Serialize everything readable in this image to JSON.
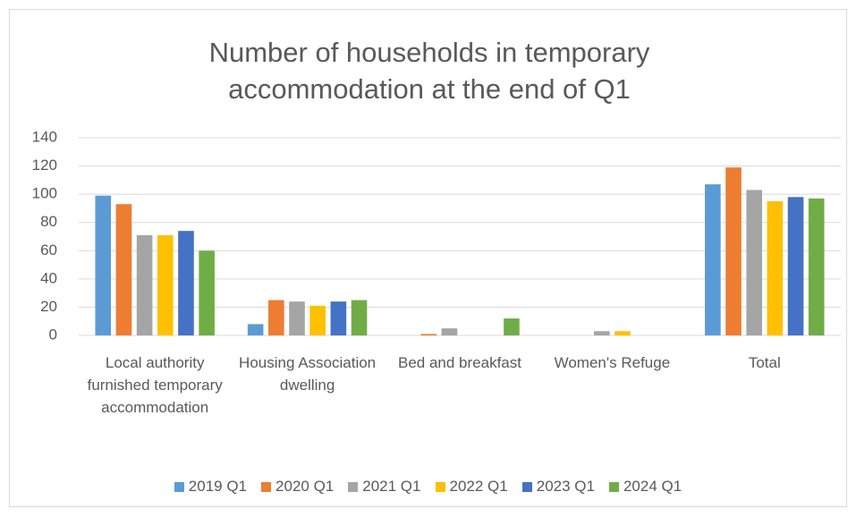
{
  "chart_data": {
    "type": "bar",
    "title": "Number of households in temporary accommodation at the end of Q1",
    "categories": [
      "Local authority furnished temporary accommodation",
      "Housing Association dwelling",
      "Bed and breakfast",
      "Women's Refuge",
      "Total"
    ],
    "series": [
      {
        "name": "2019 Q1",
        "color": "#5b9bd5",
        "values": [
          99,
          8,
          0,
          0,
          107
        ]
      },
      {
        "name": "2020 Q1",
        "color": "#ed7d31",
        "values": [
          93,
          25,
          1,
          0,
          119
        ]
      },
      {
        "name": "2021 Q1",
        "color": "#a5a5a5",
        "values": [
          71,
          24,
          5,
          3,
          103
        ]
      },
      {
        "name": "2022 Q1",
        "color": "#ffc000",
        "values": [
          71,
          21,
          0,
          3,
          95
        ]
      },
      {
        "name": "2023 Q1",
        "color": "#4472c4",
        "values": [
          74,
          24,
          0,
          0,
          98
        ]
      },
      {
        "name": "2024 Q1",
        "color": "#70ad47",
        "values": [
          60,
          25,
          12,
          0,
          97
        ]
      }
    ],
    "ylim": [
      0,
      140
    ],
    "yticks": [
      0,
      20,
      40,
      60,
      80,
      100,
      120,
      140
    ],
    "grid": true,
    "legend": "bottom"
  }
}
